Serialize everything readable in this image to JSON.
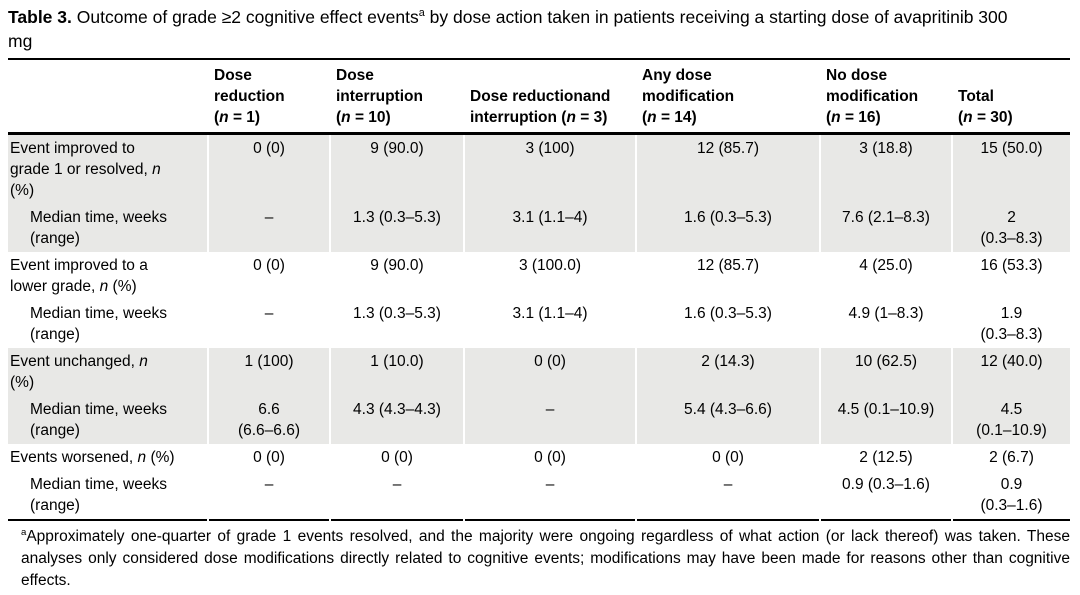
{
  "title": {
    "label": "Table 3.",
    "text_before_sup": "Outcome of grade ≥2 cognitive effect events",
    "sup": "a",
    "text_after_sup": "by dose action taken in patients receiving a starting dose of avapritinib 300 mg"
  },
  "table": {
    "columns": [
      {
        "label": ""
      },
      {
        "label": "Dose\nreduction\n(n = 1)"
      },
      {
        "label": "Dose\ninterruption\n(n = 10)"
      },
      {
        "label": "Dose reductionand\ninterruption (n = 3)"
      },
      {
        "label": "Any dose\nmodification\n(n = 14)"
      },
      {
        "label": "No dose\nmodification\n(n = 16)"
      },
      {
        "label": "Total\n(n = 30)"
      }
    ],
    "rows": [
      {
        "label": "Event improved to\ngrade 1 or resolved, n\n(%)",
        "cells": [
          "0 (0)",
          "9 (90.0)",
          "3 (100)",
          "12 (85.7)",
          "3 (18.8)",
          "15 (50.0)"
        ]
      },
      {
        "label": "Median time, weeks\n(range)",
        "cells": [
          "–",
          "1.3 (0.3–5.3)",
          "3.1 (1.1–4)",
          "1.6 (0.3–5.3)",
          "7.6 (2.1–8.3)",
          "2\n(0.3–8.3)"
        ]
      },
      {
        "label": "Event improved to a\nlower grade, n (%)",
        "cells": [
          "0 (0)",
          "9 (90.0)",
          "3 (100.0)",
          "12 (85.7)",
          "4 (25.0)",
          "16 (53.3)"
        ]
      },
      {
        "label": "Median time, weeks\n(range)",
        "cells": [
          "–",
          "1.3 (0.3–5.3)",
          "3.1 (1.1–4)",
          "1.6 (0.3–5.3)",
          "4.9 (1–8.3)",
          "1.9\n(0.3–8.3)"
        ]
      },
      {
        "label": "Event unchanged, n\n(%)",
        "cells": [
          "1 (100)",
          "1 (10.0)",
          "0 (0)",
          "2 (14.3)",
          "10 (62.5)",
          "12 (40.0)"
        ]
      },
      {
        "label": "Median time, weeks\n(range)",
        "cells": [
          "6.6\n(6.6–6.6)",
          "4.3 (4.3–4.3)",
          "–",
          "5.4 (4.3–6.6)",
          "4.5 (0.1–10.9)",
          "4.5\n(0.1–10.9)"
        ]
      },
      {
        "label": "Events worsened, n (%)",
        "cells": [
          "0 (0)",
          "0 (0)",
          "0 (0)",
          "0 (0)",
          "2 (12.5)",
          "2 (6.7)"
        ]
      },
      {
        "label": "Median time, weeks\n(range)",
        "cells": [
          "–",
          "–",
          "–",
          "–",
          "0.9 (0.3–1.6)",
          "0.9\n(0.3–1.6)"
        ]
      }
    ]
  },
  "footnote": {
    "sup": "a",
    "text": "Approximately one-quarter of grade 1 events resolved, and the majority were ongoing regardless of what action (or lack thereof) was taken. These analyses only considered dose modifications directly related to cognitive events; modifications may have been made for reasons other than cognitive effects."
  }
}
